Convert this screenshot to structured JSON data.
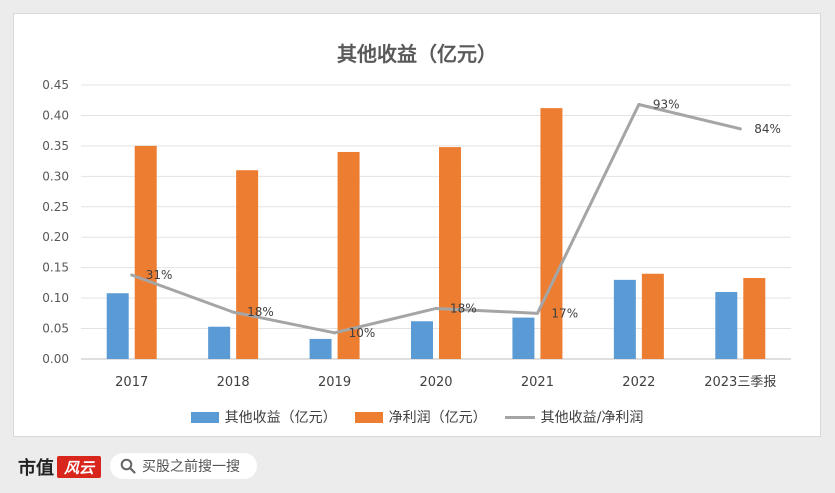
{
  "chart_data": {
    "type": "bar",
    "title": "其他收益（亿元）",
    "categories": [
      "2017",
      "2018",
      "2019",
      "2020",
      "2021",
      "2022",
      "2023三季报"
    ],
    "series": [
      {
        "name": "其他收益（亿元）",
        "type": "bar",
        "color": "#5b9bd5",
        "values": [
          0.108,
          0.053,
          0.033,
          0.062,
          0.068,
          0.13,
          0.11
        ]
      },
      {
        "name": "净利润（亿元）",
        "type": "bar",
        "color": "#ed7d31",
        "values": [
          0.35,
          0.31,
          0.34,
          0.348,
          0.412,
          0.14,
          0.133
        ]
      },
      {
        "name": "其他收益/净利润",
        "type": "line",
        "color": "#a5a5a5",
        "values": [
          0.138,
          0.077,
          0.043,
          0.083,
          0.075,
          0.418,
          0.378
        ],
        "labels": [
          "31%",
          "18%",
          "10%",
          "18%",
          "17%",
          "93%",
          "84%"
        ]
      }
    ],
    "ylim": [
      0,
      0.45
    ],
    "yticks": [
      "0.00",
      "0.05",
      "0.10",
      "0.15",
      "0.20",
      "0.25",
      "0.30",
      "0.35",
      "0.40",
      "0.45"
    ],
    "grid": true,
    "legend": "bottom"
  },
  "footer": {
    "brand": "市值",
    "brand_mark": "风云",
    "search_placeholder": "买股之前搜一搜",
    "icons": {
      "search": "search-icon"
    }
  }
}
